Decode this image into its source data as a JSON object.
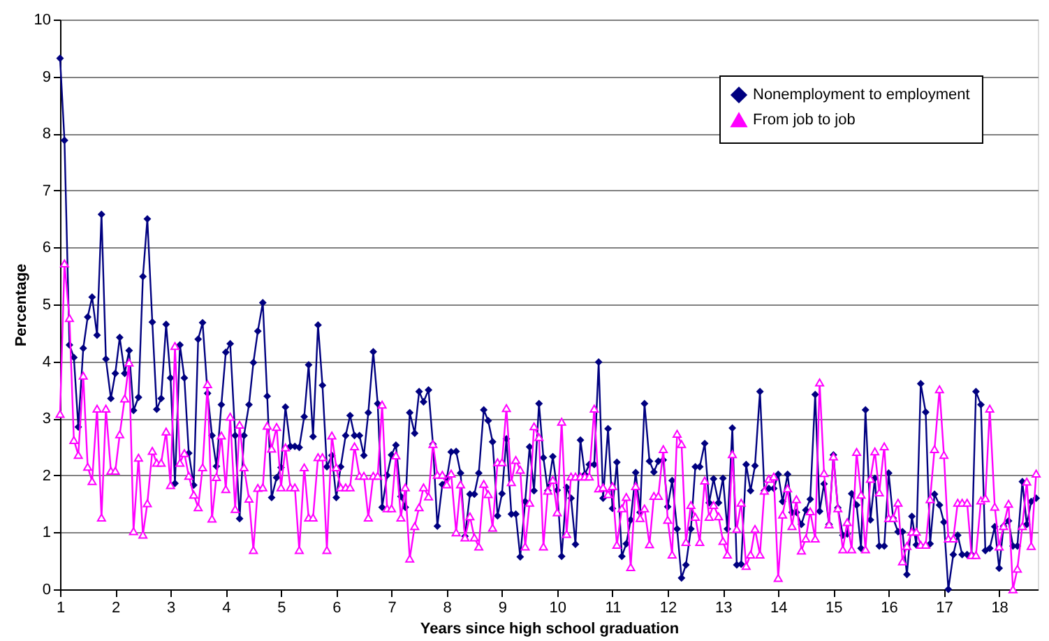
{
  "chart_data": {
    "type": "line",
    "xlabel": "Years since high school graduation",
    "ylabel": "Percentage",
    "xlim": [
      1,
      18.7
    ],
    "xticks": [
      1,
      2,
      3,
      4,
      5,
      6,
      7,
      8,
      9,
      10,
      11,
      12,
      13,
      14,
      15,
      16,
      17,
      18
    ],
    "ylim": [
      0,
      10
    ],
    "yticks": [
      0,
      1,
      2,
      3,
      4,
      5,
      6,
      7,
      8,
      9,
      10
    ],
    "grid": "y",
    "legend": "top right",
    "x": [
      1,
      1.08,
      1.17,
      1.25,
      1.33,
      1.42,
      1.5,
      1.58,
      1.67,
      1.75,
      1.83,
      1.92,
      2,
      2.08,
      2.17,
      2.25,
      2.33,
      2.42,
      2.5,
      2.58,
      2.67,
      2.75,
      2.83,
      2.92,
      3,
      3.08,
      3.17,
      3.25,
      3.33,
      3.42,
      3.5,
      3.58,
      3.67,
      3.75,
      3.83,
      3.92,
      4,
      4.08,
      4.17,
      4.25,
      4.33,
      4.42,
      4.5,
      4.58,
      4.67,
      4.75,
      4.83,
      4.92,
      5,
      5.08,
      5.17,
      5.25,
      5.33,
      5.42,
      5.5,
      5.58,
      5.67,
      5.75,
      5.83,
      5.92,
      6,
      6.08,
      6.17,
      6.25,
      6.33,
      6.42,
      6.5,
      6.58,
      6.67,
      6.75,
      6.83,
      6.92,
      7,
      7.08,
      7.17,
      7.25,
      7.33,
      7.42,
      7.5,
      7.58,
      7.67,
      7.75,
      7.83,
      7.92,
      8,
      8.08,
      8.17,
      8.25,
      8.33,
      8.42,
      8.5,
      8.58,
      8.67,
      8.75,
      8.83,
      8.92,
      9,
      9.08,
      9.17,
      9.25,
      9.33,
      9.42,
      9.5,
      9.58,
      9.67,
      9.75,
      9.83,
      9.92,
      10,
      10.08,
      10.17,
      10.25,
      10.33,
      10.42,
      10.5,
      10.58,
      10.67,
      10.75,
      10.83,
      10.92,
      11,
      11.08,
      11.17,
      11.25,
      11.33,
      11.42,
      11.5,
      11.58,
      11.67,
      11.75,
      11.83,
      11.92,
      12,
      12.08,
      12.17,
      12.25,
      12.33,
      12.42,
      12.5,
      12.58,
      12.67,
      12.75,
      12.83,
      12.92,
      13,
      13.08,
      13.17,
      13.25,
      13.33,
      13.42,
      13.5,
      13.58,
      13.67,
      13.75,
      13.83,
      13.92,
      14,
      14.08,
      14.17,
      14.25,
      14.33,
      14.42,
      14.5,
      14.58,
      14.67,
      14.75,
      14.83,
      14.92,
      15,
      15.08,
      15.17,
      15.25,
      15.33,
      15.42,
      15.5,
      15.58,
      15.67,
      15.75,
      15.83,
      15.92,
      16,
      16.08,
      16.17,
      16.25,
      16.33,
      16.42,
      16.5,
      16.58,
      16.67,
      16.75,
      16.83,
      16.92,
      17,
      17.08,
      17.17,
      17.25,
      17.33,
      17.42,
      17.5,
      17.58,
      17.67,
      17.75,
      17.83,
      17.92,
      18,
      18.08,
      18.17,
      18.25,
      18.33,
      18.42,
      18.5,
      18.58,
      18.67
    ],
    "series": [
      {
        "name": "Nonemployment to employment",
        "color": "#000080",
        "marker": "diamond",
        "values": [
          9.32,
          7.88,
          4.29,
          4.07,
          2.85,
          4.23,
          4.78,
          5.13,
          4.46,
          6.58,
          4.04,
          3.35,
          3.79,
          4.42,
          3.79,
          4.19,
          3.14,
          3.37,
          5.49,
          6.5,
          4.69,
          3.16,
          3.35,
          4.65,
          3.71,
          1.86,
          4.29,
          3.71,
          2.39,
          1.83,
          4.39,
          4.68,
          3.44,
          2.7,
          2.16,
          3.24,
          4.16,
          4.31,
          2.7,
          1.24,
          2.7,
          3.24,
          3.98,
          4.53,
          5.03,
          3.39,
          1.61,
          1.96,
          2.14,
          3.2,
          2.51,
          2.51,
          2.49,
          3.03,
          3.94,
          2.68,
          4.64,
          3.58,
          2.15,
          2.35,
          1.61,
          2.15,
          2.7,
          3.05,
          2.7,
          2.7,
          2.35,
          3.1,
          4.17,
          3.26,
          1.44,
          2.0,
          2.36,
          2.53,
          1.63,
          1.44,
          3.1,
          2.74,
          3.47,
          3.29,
          3.5,
          2.55,
          1.11,
          1.84,
          1.94,
          2.41,
          2.42,
          2.04,
          0.93,
          1.67,
          1.67,
          2.04,
          3.15,
          2.96,
          2.59,
          1.29,
          1.68,
          2.64,
          1.32,
          1.32,
          0.57,
          1.54,
          2.5,
          1.73,
          3.26,
          2.31,
          1.73,
          2.33,
          1.74,
          0.58,
          1.79,
          1.6,
          0.79,
          2.62,
          2.02,
          2.19,
          2.19,
          3.99,
          1.6,
          2.82,
          1.42,
          2.23,
          0.58,
          0.8,
          1.22,
          2.05,
          1.35,
          3.26,
          2.25,
          2.06,
          2.25,
          2.27,
          1.45,
          1.91,
          1.06,
          0.2,
          0.43,
          1.06,
          2.15,
          2.15,
          2.56,
          1.52,
          1.94,
          1.52,
          1.95,
          1.06,
          2.83,
          0.43,
          0.44,
          2.19,
          1.73,
          2.17,
          3.47,
          1.73,
          1.77,
          1.77,
          2.02,
          1.54,
          2.02,
          1.35,
          1.35,
          1.14,
          1.39,
          1.58,
          3.42,
          1.37,
          1.85,
          1.14,
          2.36,
          1.43,
          0.95,
          0.97,
          1.68,
          1.48,
          0.72,
          3.15,
          1.22,
          1.95,
          0.76,
          0.76,
          2.04,
          1.25,
          1.01,
          1.01,
          0.26,
          1.28,
          0.78,
          3.61,
          3.11,
          0.8,
          1.67,
          1.48,
          1.18,
          0.0,
          0.61,
          0.95,
          0.61,
          0.61,
          0.61,
          3.47,
          3.24,
          0.68,
          0.72,
          1.1,
          0.37,
          1.11,
          1.2,
          0.76,
          0.76,
          1.89,
          1.14,
          1.54,
          1.6
        ]
      },
      {
        "name": "From job to job",
        "color": "#ff00ff",
        "marker": "triangle",
        "values": [
          3.08,
          5.72,
          4.76,
          2.62,
          2.36,
          3.75,
          2.15,
          1.9,
          3.17,
          1.26,
          3.17,
          2.08,
          2.08,
          2.72,
          3.35,
          3.98,
          1.02,
          2.31,
          0.96,
          1.51,
          2.43,
          2.22,
          2.22,
          2.77,
          1.83,
          4.27,
          2.22,
          2.39,
          1.99,
          1.66,
          1.44,
          2.14,
          3.6,
          1.24,
          1.97,
          2.7,
          1.76,
          3.03,
          1.41,
          2.89,
          2.14,
          1.59,
          0.69,
          1.78,
          1.79,
          2.87,
          2.47,
          2.85,
          1.79,
          2.49,
          1.79,
          1.79,
          0.69,
          2.14,
          1.26,
          1.26,
          2.32,
          2.32,
          0.69,
          2.7,
          2.14,
          1.79,
          1.79,
          1.79,
          2.51,
          1.99,
          1.99,
          1.26,
          1.99,
          1.99,
          3.24,
          1.42,
          1.42,
          2.35,
          1.26,
          1.79,
          0.54,
          1.11,
          1.44,
          1.79,
          1.63,
          2.55,
          2.01,
          2.01,
          1.84,
          2.03,
          1.0,
          1.84,
          0.91,
          1.28,
          0.91,
          0.75,
          1.85,
          1.67,
          1.08,
          2.23,
          2.23,
          3.18,
          1.88,
          2.27,
          2.1,
          0.75,
          1.52,
          2.86,
          2.67,
          0.75,
          1.73,
          1.92,
          1.35,
          2.94,
          0.97,
          1.98,
          1.98,
          1.98,
          1.98,
          1.98,
          3.17,
          1.77,
          1.79,
          1.67,
          1.81,
          0.78,
          1.42,
          1.62,
          0.39,
          1.81,
          1.25,
          1.42,
          0.79,
          1.64,
          1.64,
          2.46,
          1.22,
          0.61,
          2.73,
          2.55,
          0.83,
          1.48,
          1.27,
          0.83,
          1.91,
          1.27,
          1.48,
          1.28,
          0.85,
          0.61,
          2.37,
          1.06,
          1.52,
          0.41,
          0.61,
          1.06,
          0.61,
          1.73,
          1.94,
          1.98,
          0.2,
          1.31,
          1.77,
          1.11,
          1.58,
          0.68,
          0.89,
          1.37,
          0.89,
          3.63,
          2.04,
          1.14,
          2.33,
          1.42,
          0.7,
          1.18,
          0.7,
          2.41,
          1.66,
          0.7,
          1.94,
          2.42,
          1.7,
          2.51,
          1.25,
          1.25,
          1.52,
          0.49,
          0.76,
          1.01,
          1.01,
          0.78,
          0.78,
          1.58,
          2.46,
          3.51,
          2.36,
          0.89,
          0.89,
          1.52,
          1.52,
          1.52,
          0.6,
          0.6,
          1.56,
          1.6,
          3.17,
          1.45,
          0.75,
          1.11,
          1.5,
          0.0,
          0.36,
          1.11,
          1.89,
          0.76,
          2.03
        ]
      }
    ]
  }
}
